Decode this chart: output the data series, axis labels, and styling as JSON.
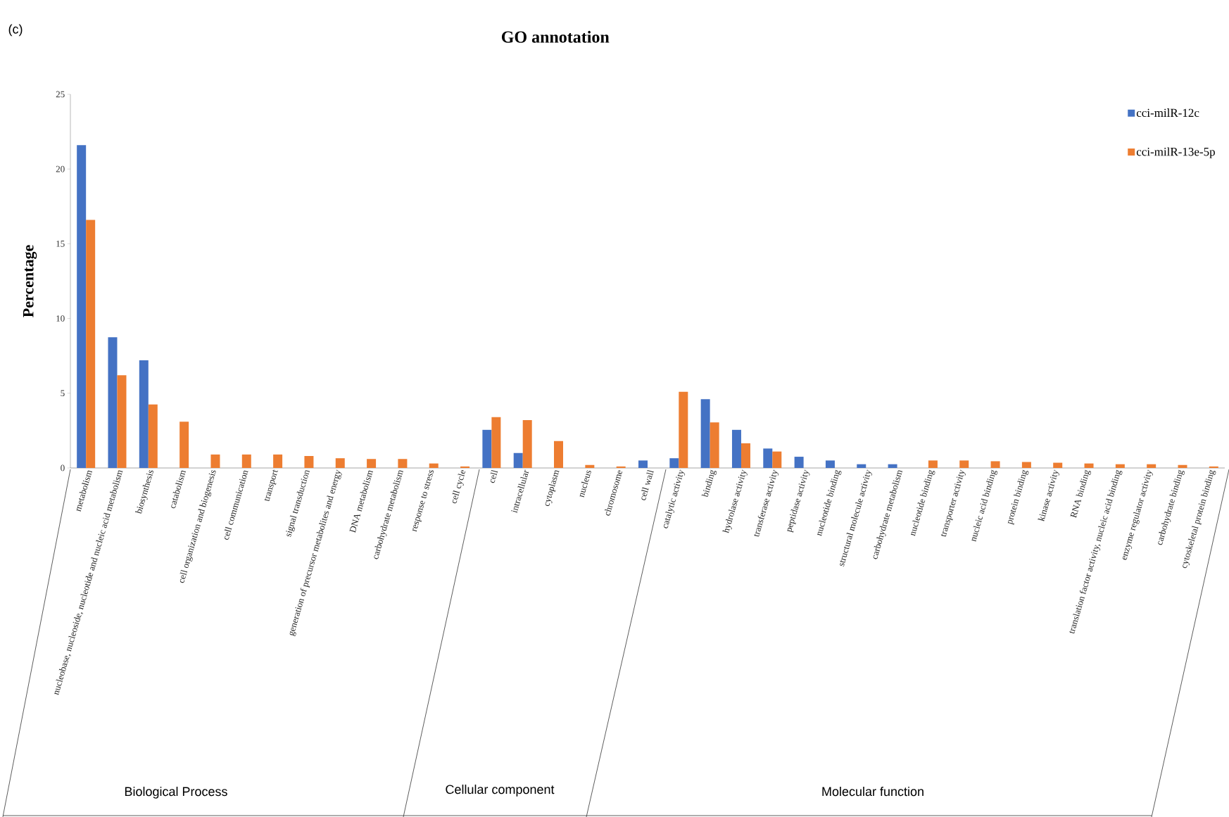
{
  "chart_data": {
    "type": "bar",
    "title": "GO annotation",
    "ylabel": "Percentage",
    "categories": [
      "metabolism",
      "nucleobase, nucleoside, nucleotide and nucleic acid metabolism",
      "biosynthesis",
      "catabolism",
      "cell organization and biogenesis",
      "cell communication",
      "transport",
      "signal transduction",
      "generation of precursor metabolites and energy",
      "DNA metabolism",
      "carbohydrate metabolism",
      "response to stress",
      "cell cycle",
      "cell",
      "intracellular",
      "cytoplasm",
      "nucleus",
      "chromosome",
      "cell wall",
      "catalytic activity",
      "binding",
      "hydrolase activity",
      "transferase activity",
      "peptidase activity",
      "nucleotide binding",
      "structural molecule activity",
      "carbohydrate metabolism",
      "nucleotide binding",
      "transporter activity",
      "nucleic acid binding",
      "protein binding",
      "kinase activity",
      "RNA binding",
      "translation factor activity, nucleic acid binding",
      "enzyme regulator activity",
      "carbohydrate binding",
      "cytoskeletal protein binding"
    ],
    "series": [
      {
        "name": "cci-milR-12c",
        "color": "#4472c4",
        "values": [
          21.6,
          8.75,
          7.2,
          0,
          0,
          0,
          0,
          0,
          0,
          0,
          0,
          0,
          0,
          2.55,
          1.0,
          0,
          0,
          0,
          0.5,
          0.65,
          4.6,
          2.55,
          1.3,
          0.75,
          0.5,
          0.25,
          0.25,
          0,
          0,
          0,
          0,
          0,
          0,
          0,
          0,
          0,
          0
        ]
      },
      {
        "name": "cci-milR-13e-5p",
        "color": "#ed7d31",
        "values": [
          16.6,
          6.2,
          4.25,
          3.1,
          0.9,
          0.9,
          0.9,
          0.8,
          0.65,
          0.6,
          0.6,
          0.3,
          0.1,
          3.4,
          3.2,
          1.8,
          0.2,
          0.1,
          0,
          5.1,
          3.05,
          1.65,
          1.1,
          0,
          0,
          0,
          0,
          0.5,
          0.5,
          0.45,
          0.4,
          0.35,
          0.3,
          0.25,
          0.25,
          0.2,
          0.1
        ]
      }
    ],
    "ylim": [
      0,
      25
    ],
    "yticks": [
      0,
      5,
      10,
      15,
      20,
      25
    ],
    "grid": false,
    "legend": "top right",
    "annotations": [
      "(c)",
      "Biological Process",
      "Cellular component",
      "Molecular function"
    ]
  }
}
